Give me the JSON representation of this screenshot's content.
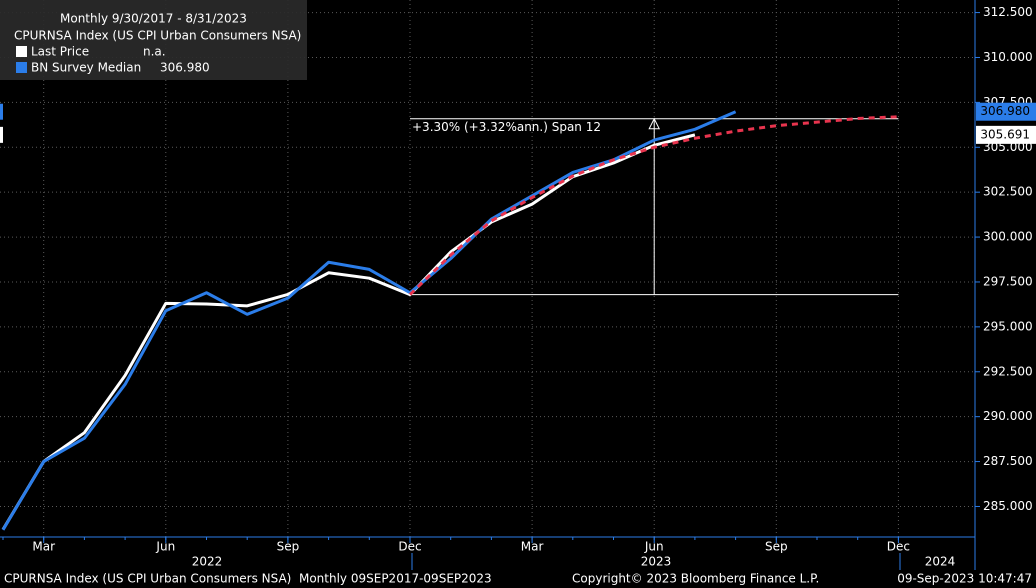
{
  "chart_data": {
    "type": "line",
    "subtitle": "Monthly 9/30/2017 - 8/31/2023",
    "title": "CPURNSA Index (US CPI Urban Consumers NSA)",
    "categories": [
      null,
      "Mar",
      null,
      null,
      "Jun",
      null,
      null,
      "Sep",
      null,
      null,
      "Dec",
      null,
      null,
      "Mar",
      null,
      null,
      "Jun",
      null,
      null,
      "Sep",
      null,
      null,
      "Dec"
    ],
    "x_year_labels": [
      "2022",
      "2023",
      "2024"
    ],
    "series": [
      {
        "name": "Last Price",
        "legend_value": "n.a.",
        "color": "#ffffff",
        "last_label": "305.691",
        "values": [
          283.716,
          287.504,
          289.109,
          292.296,
          296.311,
          296.276,
          296.171,
          296.808,
          298.012,
          297.711,
          296.797,
          299.17,
          300.84,
          301.836,
          303.363,
          304.127,
          305.109,
          305.691,
          null,
          null,
          null,
          null,
          null
        ]
      },
      {
        "name": "BN Survey Median",
        "legend_value": "306.980",
        "color": "#2b7de9",
        "last_label": "306.980",
        "values": [
          283.7,
          287.5,
          288.8,
          291.8,
          295.9,
          296.9,
          295.7,
          296.6,
          298.6,
          298.2,
          296.9,
          298.8,
          301.0,
          302.3,
          303.6,
          304.3,
          305.4,
          306.0,
          306.98,
          null,
          null,
          null,
          null
        ]
      },
      {
        "color": "#e8344e",
        "dashed": true,
        "values": [
          null,
          null,
          null,
          null,
          null,
          null,
          null,
          null,
          null,
          null,
          296.797,
          299.0,
          300.9,
          302.2,
          303.4,
          304.3,
          305.0,
          305.5,
          305.9,
          306.2,
          306.4,
          306.6,
          306.7
        ]
      }
    ],
    "ylim": [
      283.3,
      313.2
    ],
    "yticks": [
      {
        "value": 285,
        "label": "285.000"
      },
      {
        "value": 287.5,
        "label": "287.500"
      },
      {
        "value": 290,
        "label": "290.000"
      },
      {
        "value": 292.5,
        "label": "292.500"
      },
      {
        "value": 295,
        "label": "295.000"
      },
      {
        "value": 297.5,
        "label": "297.500"
      },
      {
        "value": 300,
        "label": "300.000"
      },
      {
        "value": 302.5,
        "label": "302.500"
      },
      {
        "value": 305,
        "label": "305.000"
      },
      {
        "value": 307.5,
        "label": "307.500"
      },
      {
        "value": 310,
        "label": "310.000"
      },
      {
        "value": 312.5,
        "label": "312.500"
      }
    ],
    "grid": true,
    "annotation": {
      "text": "+3.30% (+3.32%ann.) Span 12",
      "start_value": 296.797,
      "end_value": 306.59
    },
    "footer": {
      "left": "CPURNSA Index (US CPI Urban Consumers NSA)  Monthly 09SEP2017-09SEP2023",
      "center": "Copyright© 2023 Bloomberg Finance L.P.",
      "right": "09-Sep-2023 10:47:47"
    }
  }
}
